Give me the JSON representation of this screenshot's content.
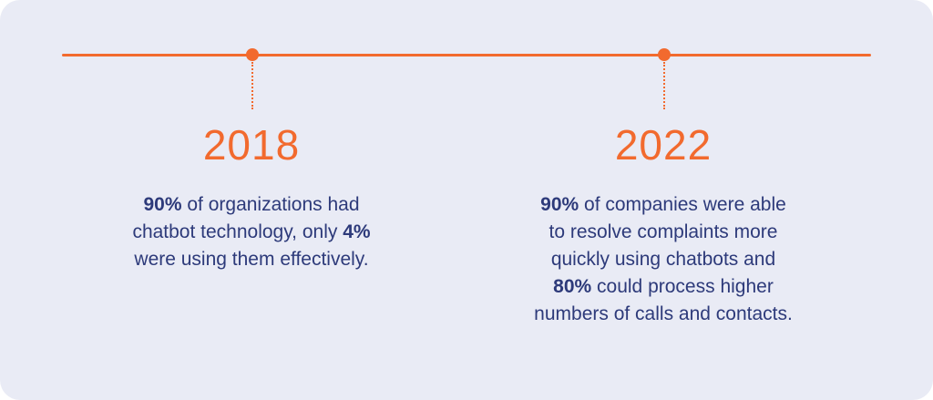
{
  "colors": {
    "accent": "#f26a2e",
    "text": "#2d3a7a",
    "background": "#e9ebf5"
  },
  "milestones": [
    {
      "year": "2018",
      "lines": [
        [
          {
            "text": "90%",
            "bold": true
          },
          {
            "text": " of organizations had",
            "bold": false
          }
        ],
        [
          {
            "text": "chatbot technology, only ",
            "bold": false
          },
          {
            "text": "4%",
            "bold": true
          }
        ],
        [
          {
            "text": "were using them effectively.",
            "bold": false
          }
        ]
      ]
    },
    {
      "year": "2022",
      "lines": [
        [
          {
            "text": "90%",
            "bold": true
          },
          {
            "text": " of companies were able",
            "bold": false
          }
        ],
        [
          {
            "text": "to resolve complaints more",
            "bold": false
          }
        ],
        [
          {
            "text": "quickly using chatbots and",
            "bold": false
          }
        ],
        [
          {
            "text": "80%",
            "bold": true
          },
          {
            "text": " could process higher",
            "bold": false
          }
        ],
        [
          {
            "text": "numbers of calls and contacts.",
            "bold": false
          }
        ]
      ]
    }
  ]
}
